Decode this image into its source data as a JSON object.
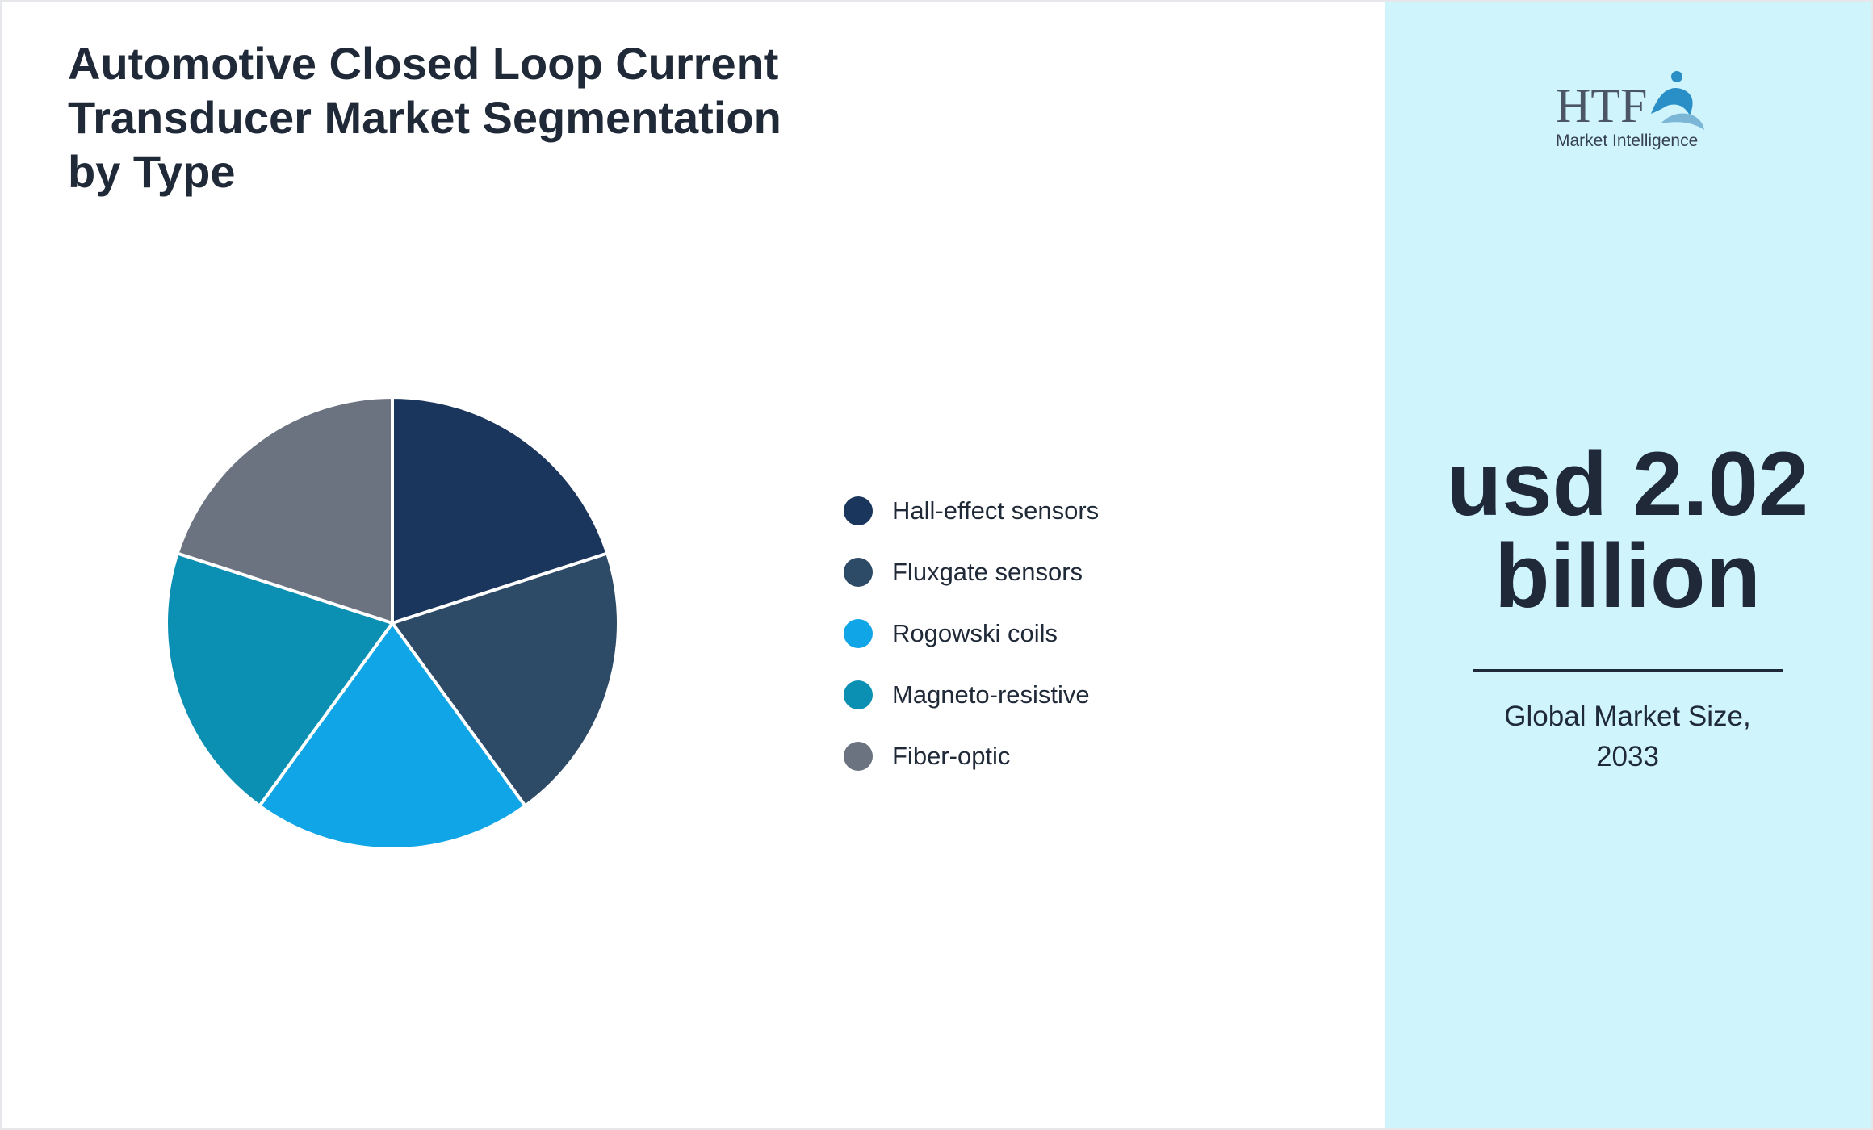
{
  "title": "Automotive Closed Loop Current Transducer Market Segmentation by Type",
  "chart_data": {
    "type": "pie",
    "categories": [
      "Hall-effect sensors",
      "Fluxgate sensors",
      "Rogowski coils",
      "Magneto-resistive",
      "Fiber-optic"
    ],
    "values": [
      20,
      20,
      20,
      20,
      20
    ],
    "colors": [
      "#1b365d",
      "#2d4a66",
      "#10a5e6",
      "#0b90b3",
      "#6b7280"
    ],
    "legend_position": "right"
  },
  "logo": {
    "text_main": "HTF",
    "text_sub": "Market Intelligence"
  },
  "market": {
    "value": "usd 2.02 billion",
    "caption": "Global Market Size, 2033"
  }
}
